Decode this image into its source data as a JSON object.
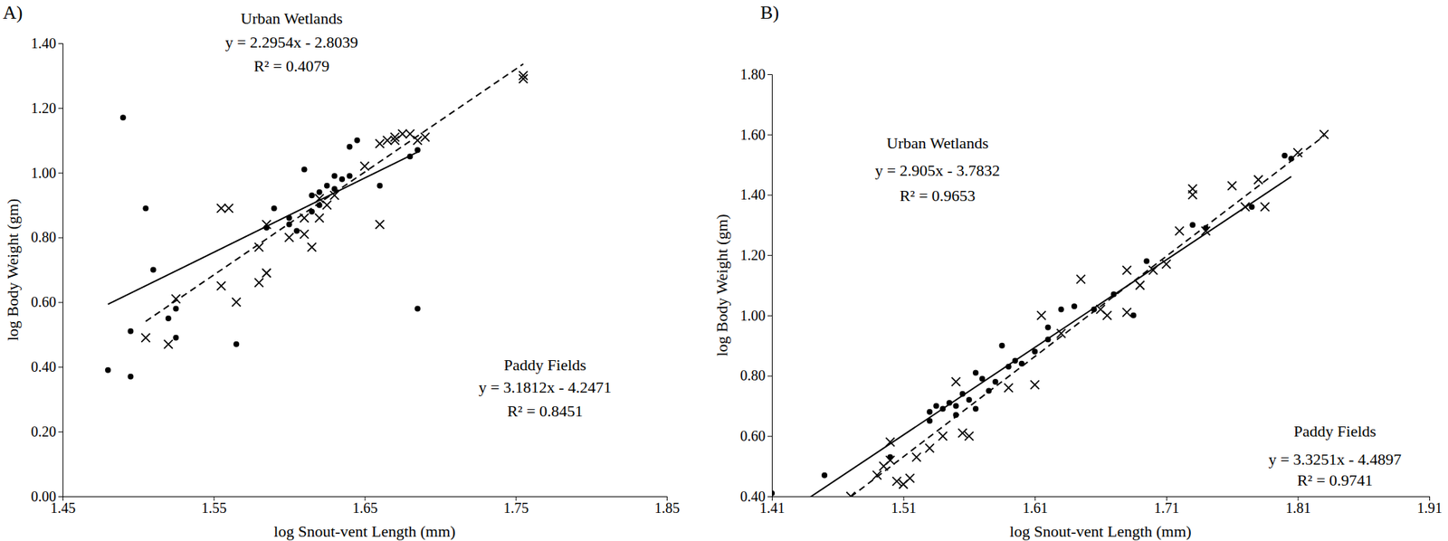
{
  "chart_data": [
    {
      "type": "scatter",
      "title": "A)",
      "x_label": "log Snout-vent Length (mm)",
      "y_label": "log Body Weight (gm)",
      "xlim": [
        1.45,
        1.85
      ],
      "xticks": [
        1.45,
        1.55,
        1.65,
        1.75,
        1.85
      ],
      "ylim": [
        0,
        1.4
      ],
      "yticks": [
        {
          "value": 0,
          "label": "0.00"
        },
        {
          "value": 0.2,
          "label": "0.20"
        },
        {
          "value": 0.4,
          "label": "0.40"
        },
        {
          "value": 0.6,
          "label": "0.60"
        },
        {
          "value": 0.8,
          "label": "0.80"
        },
        {
          "value": 1.0,
          "label": "1.00"
        },
        {
          "value": 1.2,
          "label": "1.20"
        },
        {
          "value": 1.4,
          "label": "1.40"
        }
      ],
      "grid": false,
      "series": [
        {
          "name": "Urban Wetlands",
          "color": "#000000",
          "marker": "circle",
          "line_style": "solid",
          "x": [
            1.48,
            1.49,
            1.495,
            1.495,
            1.505,
            1.51,
            1.52,
            1.525,
            1.525,
            1.565,
            1.59,
            1.585,
            1.6,
            1.605,
            1.61,
            1.615,
            1.62,
            1.625,
            1.63,
            1.635,
            1.64,
            1.64,
            1.645,
            1.66,
            1.68,
            1.685,
            1.685,
            1.62,
            1.63,
            1.615,
            1.6
          ],
          "values": [
            0.39,
            1.17,
            0.51,
            0.37,
            0.89,
            0.7,
            0.55,
            0.49,
            0.58,
            0.47,
            0.89,
            0.83,
            0.84,
            0.82,
            1.01,
            0.93,
            0.9,
            0.96,
            0.99,
            0.98,
            0.99,
            1.08,
            1.1,
            0.96,
            1.05,
            1.07,
            0.58,
            0.94,
            0.95,
            0.88,
            0.86
          ],
          "trendline": {
            "slope": 2.2954,
            "intercept": -2.8039,
            "label": "y = 2.2954x - 2.8039",
            "r2_label": "R² = 0.4079"
          }
        },
        {
          "name": "Paddy Fields",
          "color": "#000000",
          "marker": "x",
          "line_style": "dashed",
          "x": [
            1.505,
            1.52,
            1.525,
            1.555,
            1.56,
            1.555,
            1.565,
            1.58,
            1.585,
            1.58,
            1.585,
            1.6,
            1.61,
            1.61,
            1.615,
            1.62,
            1.625,
            1.63,
            1.62,
            1.65,
            1.66,
            1.66,
            1.665,
            1.67,
            1.675,
            1.68,
            1.685,
            1.69,
            1.755,
            1.755,
            1.67
          ],
          "values": [
            0.49,
            0.47,
            0.61,
            0.89,
            0.89,
            0.65,
            0.6,
            0.66,
            0.69,
            0.77,
            0.84,
            0.8,
            0.81,
            0.86,
            0.77,
            0.86,
            0.9,
            0.93,
            0.92,
            1.02,
            0.84,
            1.09,
            1.1,
            1.1,
            1.12,
            1.12,
            1.1,
            1.11,
            1.3,
            1.29,
            1.11
          ],
          "trendline": {
            "slope": 3.1812,
            "intercept": -4.2471,
            "label": "y = 3.1812x - 4.2471",
            "r2_label": "R² = 0.8451"
          }
        }
      ]
    },
    {
      "type": "scatter",
      "title": "B)",
      "x_label": "log Snout-vent Length (mm)",
      "y_label": "log Body Weight (gm)",
      "xlim": [
        1.41,
        1.91
      ],
      "xticks": [
        1.41,
        1.51,
        1.61,
        1.71,
        1.81,
        1.91
      ],
      "ylim": [
        0.4,
        1.8
      ],
      "yticks": [
        {
          "value": 0.4,
          "label": "0.40"
        },
        {
          "value": 0.6,
          "label": "0.60"
        },
        {
          "value": 0.8,
          "label": "0.80"
        },
        {
          "value": 1.0,
          "label": "1.00"
        },
        {
          "value": 1.2,
          "label": "1.20"
        },
        {
          "value": 1.4,
          "label": "1.40"
        },
        {
          "value": 1.6,
          "label": "1.60"
        },
        {
          "value": 1.8,
          "label": "1.80"
        }
      ],
      "grid": false,
      "series": [
        {
          "name": "Urban Wetlands",
          "color": "#000000",
          "marker": "circle",
          "line_style": "solid",
          "x": [
            1.41,
            1.45,
            1.5,
            1.53,
            1.53,
            1.535,
            1.54,
            1.545,
            1.55,
            1.555,
            1.56,
            1.565,
            1.57,
            1.575,
            1.58,
            1.585,
            1.59,
            1.595,
            1.6,
            1.61,
            1.62,
            1.62,
            1.63,
            1.64,
            1.655,
            1.67,
            1.685,
            1.695,
            1.73,
            1.74,
            1.775,
            1.8,
            1.805,
            1.55,
            1.565
          ],
          "values": [
            0.41,
            0.47,
            0.53,
            0.65,
            0.68,
            0.7,
            0.69,
            0.71,
            0.7,
            0.74,
            0.72,
            0.81,
            0.79,
            0.75,
            0.78,
            0.9,
            0.83,
            0.85,
            0.84,
            0.88,
            0.92,
            0.96,
            1.02,
            1.03,
            1.02,
            1.07,
            1.0,
            1.18,
            1.3,
            1.29,
            1.36,
            1.53,
            1.52,
            0.67,
            0.69
          ],
          "trendline": {
            "slope": 2.905,
            "intercept": -3.7832,
            "label": "y = 2.905x - 3.7832",
            "r2_label": "R² = 0.9653"
          }
        },
        {
          "name": "Paddy Fields",
          "color": "#000000",
          "marker": "x",
          "line_style": "dashed",
          "x": [
            1.47,
            1.49,
            1.495,
            1.5,
            1.5,
            1.505,
            1.51,
            1.515,
            1.52,
            1.53,
            1.54,
            1.55,
            1.555,
            1.56,
            1.59,
            1.61,
            1.615,
            1.63,
            1.645,
            1.66,
            1.665,
            1.68,
            1.68,
            1.69,
            1.7,
            1.71,
            1.72,
            1.73,
            1.73,
            1.74,
            1.76,
            1.77,
            1.78,
            1.785,
            1.81,
            1.83
          ],
          "values": [
            0.4,
            0.47,
            0.5,
            0.58,
            0.52,
            0.45,
            0.44,
            0.46,
            0.53,
            0.56,
            0.6,
            0.78,
            0.61,
            0.6,
            0.76,
            0.77,
            1.0,
            0.94,
            1.12,
            1.02,
            1.0,
            1.01,
            1.15,
            1.1,
            1.15,
            1.17,
            1.28,
            1.4,
            1.42,
            1.28,
            1.43,
            1.36,
            1.45,
            1.36,
            1.54,
            1.6
          ],
          "trendline": {
            "slope": 3.3251,
            "intercept": -4.4897,
            "label": "y = 3.3251x - 4.4897",
            "r2_label": "R² = 0.9741"
          }
        }
      ]
    }
  ]
}
